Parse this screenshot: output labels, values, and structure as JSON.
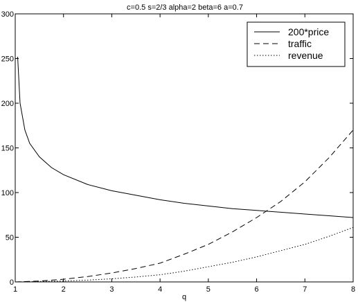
{
  "chart_data": {
    "type": "line",
    "title": "c=0.5 s=2/3 alpha=2 beta=6 a=0.7",
    "xlabel": "q",
    "ylabel": "",
    "xlim": [
      1,
      8
    ],
    "ylim": [
      0,
      300
    ],
    "xticks": [
      "1",
      "2",
      "3",
      "4",
      "5",
      "6",
      "7",
      "8"
    ],
    "yticks": [
      "0",
      "50",
      "100",
      "150",
      "200",
      "250",
      "300"
    ],
    "grid": false,
    "legend_position": "top-right",
    "series": [
      {
        "name": "200*price",
        "style": "solid",
        "x": [
          1.05,
          1.1,
          1.2,
          1.3,
          1.5,
          1.75,
          2,
          2.5,
          3,
          3.5,
          4,
          4.5,
          5,
          5.5,
          6,
          6.5,
          7,
          7.5,
          8
        ],
        "y": [
          252,
          200,
          170,
          155,
          140,
          128,
          120,
          109,
          102,
          97,
          92,
          88,
          85,
          82,
          80,
          78,
          76,
          74,
          72
        ]
      },
      {
        "name": "traffic",
        "style": "dashed",
        "x": [
          1,
          1.5,
          2,
          2.5,
          3,
          3.5,
          4,
          4.5,
          5,
          5.5,
          6,
          6.5,
          7,
          7.5,
          8
        ],
        "y": [
          0,
          1,
          3,
          6,
          10,
          15,
          21,
          31,
          42,
          56,
          72,
          90,
          112,
          139,
          170
        ]
      },
      {
        "name": "revenue",
        "style": "dotted",
        "x": [
          1,
          1.5,
          2,
          2.5,
          3,
          3.5,
          4,
          4.5,
          5,
          5.5,
          6,
          6.5,
          7,
          7.5,
          8
        ],
        "y": [
          0,
          0.5,
          1,
          2,
          3.5,
          5.5,
          8,
          12,
          17,
          22,
          28,
          35,
          42,
          51,
          61
        ]
      }
    ]
  }
}
